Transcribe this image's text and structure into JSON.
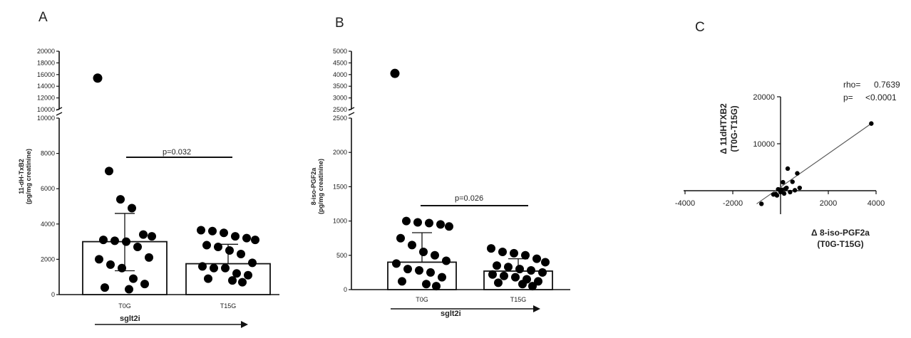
{
  "chart_data": [
    {
      "panel": "A",
      "type": "bar",
      "ylabel": "11-dH-TxB2",
      "ylabel_unit": "(pg/mg creatinine)",
      "yticks_lower": [
        "0",
        "2000",
        "4000",
        "6000",
        "8000",
        "10000"
      ],
      "yticks_upper": [
        "10000",
        "12000",
        "14000",
        "16000",
        "18000",
        "20000"
      ],
      "ylim_lower": [
        0,
        10000
      ],
      "ylim_upper": [
        10000,
        20000
      ],
      "categories": [
        "T0G",
        "T15G"
      ],
      "bar_means": [
        3000,
        1750
      ],
      "sd_upper": [
        4600,
        2850
      ],
      "sd_lower": [
        1350,
        null
      ],
      "points": [
        [
          15400,
          7000,
          5400,
          4900,
          3400,
          3300,
          3100,
          3050,
          3000,
          2700,
          2100,
          2000,
          1700,
          1500,
          900,
          600,
          400,
          300
        ],
        [
          3650,
          3600,
          3500,
          3300,
          3200,
          3100,
          2800,
          2700,
          2500,
          2300,
          1800,
          1600,
          1500,
          1500,
          1200,
          1100,
          900,
          800,
          700
        ]
      ],
      "group_label": "sglt2i",
      "pvalue": "p=0.032"
    },
    {
      "panel": "B",
      "type": "bar",
      "ylabel": "8-iso-PGF2a",
      "ylabel_unit": "(pg/mg creatinine)",
      "yticks_lower": [
        "0",
        "500",
        "1000",
        "1500",
        "2000",
        "2500"
      ],
      "yticks_upper": [
        "2500",
        "3000",
        "3500",
        "4000",
        "4500",
        "5000"
      ],
      "ylim_lower": [
        0,
        2500
      ],
      "ylim_upper": [
        2500,
        5000
      ],
      "categories": [
        "T0G",
        "T15G"
      ],
      "bar_means": [
        400,
        270
      ],
      "sd_upper": [
        830,
        450
      ],
      "sd_lower": [
        null,
        null
      ],
      "points": [
        [
          4050,
          1000,
          980,
          970,
          950,
          920,
          750,
          650,
          550,
          500,
          420,
          380,
          300,
          280,
          250,
          180,
          120,
          80,
          50
        ],
        [
          600,
          550,
          530,
          500,
          450,
          400,
          350,
          330,
          300,
          280,
          250,
          220,
          200,
          180,
          150,
          120,
          100,
          80,
          50
        ]
      ],
      "group_label": "sglt2i",
      "pvalue": "p=0.026"
    },
    {
      "panel": "C",
      "type": "scatter",
      "xlabel": "Δ 8-iso-PGF2a",
      "xlabel_sub": "(T0G-T15G)",
      "ylabel": "Δ 11dHTXB2",
      "ylabel_sub": "(T0G-T15G)",
      "xticks": [
        "-4000",
        "-2000",
        "2000",
        "4000"
      ],
      "xtick_values": [
        -4000,
        -2000,
        2000,
        4000
      ],
      "yticks": [
        "10000",
        "20000"
      ],
      "ytick_values": [
        10000,
        20000
      ],
      "xlim": [
        -4000,
        4000
      ],
      "ylim": [
        -5000,
        20000
      ],
      "x": [
        3800,
        -800,
        300,
        700,
        500,
        100,
        -100,
        200,
        -300,
        400,
        600,
        -200,
        0,
        250,
        150,
        -150,
        800,
        50
      ],
      "y": [
        14300,
        -2800,
        4700,
        3700,
        1900,
        1800,
        300,
        400,
        -800,
        -300,
        100,
        -700,
        -300,
        600,
        -600,
        -1000,
        600,
        200
      ],
      "fit_line": {
        "x": [
          -1000,
          3800
        ],
        "y": [
          -2800,
          14300
        ]
      },
      "rho_label": "rho=",
      "rho_value": "0.7639",
      "p_label": "p=",
      "p_value": "<0.0001"
    }
  ]
}
